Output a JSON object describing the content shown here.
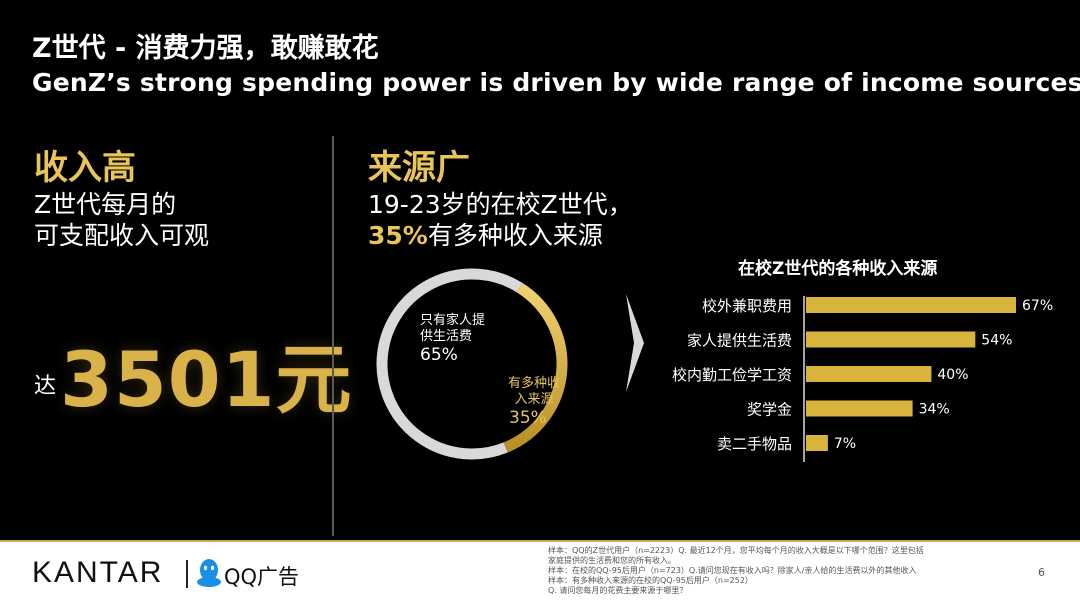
{
  "header": {
    "title_cn": "Z世代 - 消费力强，敢赚敢花",
    "title_en": "GenZ’s strong spending power is driven by wide range of income sources"
  },
  "left": {
    "heading": "收入高",
    "line1": "Z世代每月的",
    "line2": "可支配收入可观",
    "prefix": "达",
    "amount": "3501元"
  },
  "middle": {
    "heading": "来源广",
    "line1": "19-23岁的在校Z世代，",
    "line2_highlight": "35%",
    "line2_rest": "有多种收入来源"
  },
  "chart_data": [
    {
      "type": "pie",
      "categories": [
        "只有家人提供生活费",
        "有多种收入来源"
      ],
      "values": [
        65,
        35
      ],
      "labels": {
        "family_line1": "只有家人提",
        "family_line2": "供生活费",
        "family_pct": "65%",
        "multi_line1": "有多种收",
        "multi_line2": "入来源",
        "multi_pct": "35%"
      },
      "colors": [
        "#d9d9d9",
        "#d9b43c"
      ]
    },
    {
      "type": "bar",
      "title": "在校Z世代的各种收入来源",
      "categories": [
        "校外兼职费用",
        "家人提供生活费",
        "校内勤工俭学工资",
        "奖学金",
        "卖二手物品"
      ],
      "values": [
        67,
        54,
        40,
        34,
        7
      ],
      "value_labels": [
        "67%",
        "54%",
        "40%",
        "34%",
        "7%"
      ],
      "color": "#d9b43c"
    }
  ],
  "footer": {
    "brand": "KANTAR",
    "partner": "QQ广告",
    "notes": [
      "样本：QQ的Z世代用户（n=2223）Q. 最近12个月，您平均每个月的收入大概是以下哪个范围？这里包括",
      "家庭提供的生活费和您的所有收入。",
      "样本：在校的QQ-95后用户（n=723）Q.请问您现在有收入吗？除家人/亲人给的生活费以外的其他收入",
      "样本：有多种收入来源的在校的QQ-95后用户（n=252）",
      "Q. 请问您每月的花费主要来源于哪里？"
    ],
    "page": "6"
  }
}
